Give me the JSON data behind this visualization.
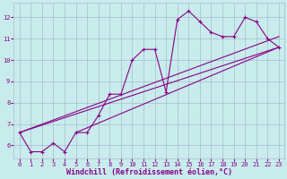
{
  "xlabel": "Windchill (Refroidissement éolien,°C)",
  "bg_color": "#c8ecec",
  "grid_color": "#aabbcc",
  "line_color": "#880088",
  "x_main": [
    0,
    1,
    2,
    3,
    4,
    5,
    6,
    7,
    8,
    9,
    10,
    11,
    12,
    13,
    14,
    15,
    16,
    17,
    18,
    19,
    20,
    21,
    22,
    23
  ],
  "y_main": [
    6.6,
    5.7,
    5.7,
    6.1,
    5.7,
    6.6,
    6.6,
    7.4,
    8.4,
    8.4,
    10.0,
    10.5,
    10.5,
    8.5,
    11.9,
    12.3,
    11.8,
    11.3,
    11.1,
    11.1,
    12.0,
    11.8,
    11.0,
    10.6
  ],
  "straight_lines": [
    {
      "x": [
        0,
        23
      ],
      "y": [
        6.6,
        10.6
      ]
    },
    {
      "x": [
        0,
        23
      ],
      "y": [
        6.6,
        11.1
      ]
    },
    {
      "x": [
        5,
        23
      ],
      "y": [
        6.6,
        10.6
      ]
    }
  ],
  "xlim": [
    -0.5,
    23.5
  ],
  "ylim": [
    5.4,
    12.7
  ],
  "yticks": [
    6,
    7,
    8,
    9,
    10,
    11,
    12
  ],
  "xticks": [
    0,
    1,
    2,
    3,
    4,
    5,
    6,
    7,
    8,
    9,
    10,
    11,
    12,
    13,
    14,
    15,
    16,
    17,
    18,
    19,
    20,
    21,
    22,
    23
  ],
  "marker": "+",
  "marker_size": 3.5,
  "line_width": 0.8,
  "tick_fontsize": 5.0,
  "xlabel_fontsize": 6.0
}
